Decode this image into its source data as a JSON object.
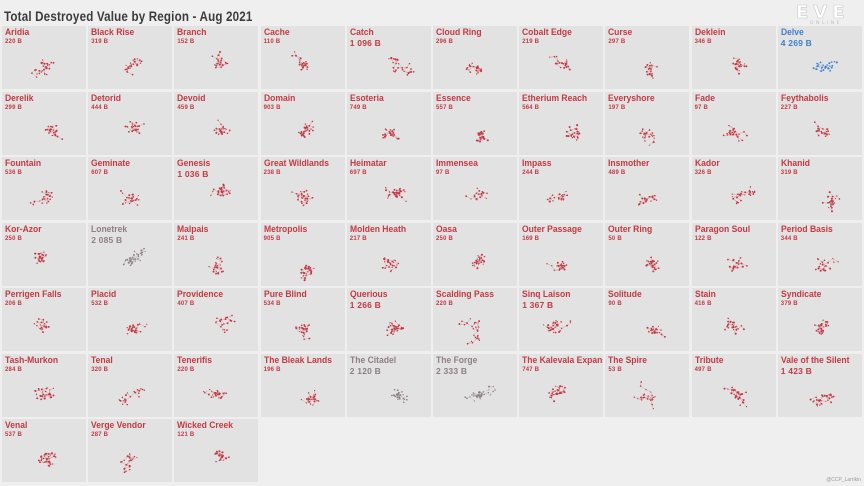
{
  "title": "Total Destroyed Value by Region - Aug 2021",
  "logo": {
    "main": "EVE",
    "sub": "ONLINE"
  },
  "credit": "@CCP_Larrikin",
  "colors": {
    "default": "#c23a43",
    "muted": "#8e7f86",
    "highlight": "#3d7fce",
    "tile": "#e2e2e2",
    "background": "#efefef"
  },
  "chart_data": {
    "type": "table",
    "title": "Total Destroyed Value by Region - Aug 2021",
    "unit": "B",
    "regions": [
      {
        "name": "Aridia",
        "value": "220 B",
        "style": "default"
      },
      {
        "name": "Black Rise",
        "value": "319 B",
        "style": "default"
      },
      {
        "name": "Branch",
        "value": "152 B",
        "style": "default"
      },
      {
        "name": "Cache",
        "value": "110 B",
        "style": "default"
      },
      {
        "name": "Catch",
        "value": "1 096 B",
        "style": "default"
      },
      {
        "name": "Cloud Ring",
        "value": "296 B",
        "style": "default"
      },
      {
        "name": "Cobalt Edge",
        "value": "219 B",
        "style": "default"
      },
      {
        "name": "Curse",
        "value": "297 B",
        "style": "default"
      },
      {
        "name": "Deklein",
        "value": "346 B",
        "style": "default"
      },
      {
        "name": "Delve",
        "value": "4 269 B",
        "style": "highlight"
      },
      {
        "name": "Derelik",
        "value": "299 B",
        "style": "default"
      },
      {
        "name": "Detorid",
        "value": "444 B",
        "style": "default"
      },
      {
        "name": "Devoid",
        "value": "459 B",
        "style": "default"
      },
      {
        "name": "Domain",
        "value": "903 B",
        "style": "default"
      },
      {
        "name": "Esoteria",
        "value": "749 B",
        "style": "default"
      },
      {
        "name": "Essence",
        "value": "557 B",
        "style": "default"
      },
      {
        "name": "Etherium Reach",
        "value": "564 B",
        "style": "default"
      },
      {
        "name": "Everyshore",
        "value": "197 B",
        "style": "default"
      },
      {
        "name": "Fade",
        "value": "97 B",
        "style": "default"
      },
      {
        "name": "Feythabolis",
        "value": "227 B",
        "style": "default"
      },
      {
        "name": "Fountain",
        "value": "536 B",
        "style": "default"
      },
      {
        "name": "Geminate",
        "value": "607 B",
        "style": "default"
      },
      {
        "name": "Genesis",
        "value": "1 036 B",
        "style": "default"
      },
      {
        "name": "Great Wildlands",
        "value": "238 B",
        "style": "default"
      },
      {
        "name": "Heimatar",
        "value": "697 B",
        "style": "default"
      },
      {
        "name": "Immensea",
        "value": "97 B",
        "style": "default"
      },
      {
        "name": "Impass",
        "value": "244 B",
        "style": "default"
      },
      {
        "name": "Insmother",
        "value": "489 B",
        "style": "default"
      },
      {
        "name": "Kador",
        "value": "326 B",
        "style": "default"
      },
      {
        "name": "Khanid",
        "value": "319 B",
        "style": "default"
      },
      {
        "name": "Kor-Azor",
        "value": "250 B",
        "style": "default"
      },
      {
        "name": "Lonetrek",
        "value": "2 085 B",
        "style": "muted"
      },
      {
        "name": "Malpais",
        "value": "241 B",
        "style": "default"
      },
      {
        "name": "Metropolis",
        "value": "905 B",
        "style": "default"
      },
      {
        "name": "Molden Heath",
        "value": "217 B",
        "style": "default"
      },
      {
        "name": "Oasa",
        "value": "250 B",
        "style": "default"
      },
      {
        "name": "Outer Passage",
        "value": "169 B",
        "style": "default"
      },
      {
        "name": "Outer Ring",
        "value": "50 B",
        "style": "default"
      },
      {
        "name": "Paragon Soul",
        "value": "122 B",
        "style": "default"
      },
      {
        "name": "Period Basis",
        "value": "344 B",
        "style": "default"
      },
      {
        "name": "Perrigen Falls",
        "value": "206 B",
        "style": "default"
      },
      {
        "name": "Placid",
        "value": "532 B",
        "style": "default"
      },
      {
        "name": "Providence",
        "value": "407 B",
        "style": "default"
      },
      {
        "name": "Pure Blind",
        "value": "534 B",
        "style": "default"
      },
      {
        "name": "Querious",
        "value": "1 266 B",
        "style": "default"
      },
      {
        "name": "Scalding Pass",
        "value": "220 B",
        "style": "default"
      },
      {
        "name": "Sinq Laison",
        "value": "1 367 B",
        "style": "default"
      },
      {
        "name": "Solitude",
        "value": "90 B",
        "style": "default"
      },
      {
        "name": "Stain",
        "value": "416 B",
        "style": "default"
      },
      {
        "name": "Syndicate",
        "value": "379 B",
        "style": "default"
      },
      {
        "name": "Tash-Murkon",
        "value": "284 B",
        "style": "default"
      },
      {
        "name": "Tenal",
        "value": "320 B",
        "style": "default"
      },
      {
        "name": "Tenerifis",
        "value": "220 B",
        "style": "default"
      },
      {
        "name": "The Bleak Lands",
        "value": "196 B",
        "style": "default"
      },
      {
        "name": "The Citadel",
        "value": "2 120 B",
        "style": "muted"
      },
      {
        "name": "The Forge",
        "value": "2 333 B",
        "style": "muted"
      },
      {
        "name": "The Kalevala Expanse",
        "value": "747 B",
        "style": "default"
      },
      {
        "name": "The Spire",
        "value": "53 B",
        "style": "default"
      },
      {
        "name": "Tribute",
        "value": "497 B",
        "style": "default"
      },
      {
        "name": "Vale of the Silent",
        "value": "1 423 B",
        "style": "default"
      },
      {
        "name": "Venal",
        "value": "537 B",
        "style": "default"
      },
      {
        "name": "Verge Vendor",
        "value": "287 B",
        "style": "default"
      },
      {
        "name": "Wicked Creek",
        "value": "121 B",
        "style": "default"
      }
    ]
  }
}
